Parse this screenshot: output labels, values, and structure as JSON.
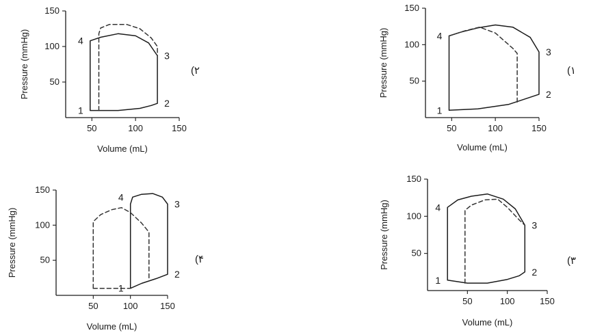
{
  "chart_data": [
    {
      "type": "line",
      "panel_label": "(۱",
      "xlabel": "Volume (mL)",
      "ylabel": "Pressure (mmHg)",
      "xticks": [
        50,
        100,
        150
      ],
      "yticks": [
        50,
        100,
        150
      ],
      "xlim": [
        20,
        150
      ],
      "ylim": [
        0,
        150
      ],
      "series": [
        {
          "style": "solid",
          "points": [
            [
              47,
              10
            ],
            [
              80,
              12
            ],
            [
              115,
              18
            ],
            [
              130,
              24
            ],
            [
              150,
              32
            ],
            [
              150,
              90
            ],
            [
              140,
              110
            ],
            [
              120,
              124
            ],
            [
              100,
              127
            ],
            [
              80,
              123
            ],
            [
              60,
              117
            ],
            [
              47,
              112
            ],
            [
              47,
              10
            ]
          ]
        },
        {
          "style": "dashed",
          "points": [
            [
              47,
              112
            ],
            [
              65,
              119
            ],
            [
              82,
              124
            ],
            [
              100,
              116
            ],
            [
              120,
              95
            ],
            [
              125,
              88
            ],
            [
              125,
              20
            ]
          ]
        }
      ],
      "point_labels": [
        {
          "text": "1",
          "x": 47,
          "y": 10,
          "anchor": "left"
        },
        {
          "text": "2",
          "x": 150,
          "y": 32,
          "anchor": "right"
        },
        {
          "text": "3",
          "x": 150,
          "y": 90,
          "anchor": "right"
        },
        {
          "text": "4",
          "x": 47,
          "y": 112,
          "anchor": "left"
        }
      ]
    },
    {
      "type": "line",
      "panel_label": "(۲",
      "xlabel": "Volume (mL)",
      "ylabel": "Pressure (mmHg)",
      "xticks": [
        50,
        100,
        150
      ],
      "yticks": [
        50,
        100,
        150
      ],
      "xlim": [
        20,
        150
      ],
      "ylim": [
        0,
        150
      ],
      "series": [
        {
          "style": "solid",
          "points": [
            [
              48,
              10
            ],
            [
              80,
              10
            ],
            [
              105,
              13
            ],
            [
              118,
              17
            ],
            [
              125,
              20
            ],
            [
              125,
              87
            ],
            [
              115,
              105
            ],
            [
              100,
              115
            ],
            [
              80,
              118
            ],
            [
              60,
              113
            ],
            [
              48,
              108
            ],
            [
              48,
              10
            ]
          ]
        },
        {
          "style": "dashed",
          "points": [
            [
              58,
              10
            ],
            [
              58,
              118
            ],
            [
              60,
              126
            ],
            [
              70,
              131
            ],
            [
              90,
              131
            ],
            [
              105,
              125
            ],
            [
              118,
              112
            ],
            [
              125,
              100
            ],
            [
              125,
              87
            ]
          ]
        }
      ],
      "point_labels": [
        {
          "text": "1",
          "x": 48,
          "y": 10,
          "anchor": "left"
        },
        {
          "text": "2",
          "x": 125,
          "y": 20,
          "anchor": "right"
        },
        {
          "text": "3",
          "x": 125,
          "y": 87,
          "anchor": "right"
        },
        {
          "text": "4",
          "x": 48,
          "y": 108,
          "anchor": "left"
        }
      ]
    },
    {
      "type": "line",
      "panel_label": "(۳",
      "xlabel": "Volume (mL)",
      "ylabel": "Pressure (mmHg)",
      "xticks": [
        50,
        100,
        150
      ],
      "yticks": [
        50,
        100,
        150
      ],
      "xlim": [
        0,
        150
      ],
      "ylim": [
        0,
        150
      ],
      "series": [
        {
          "style": "solid",
          "points": [
            [
              25,
              14
            ],
            [
              50,
              10
            ],
            [
              75,
              10
            ],
            [
              100,
              15
            ],
            [
              115,
              20
            ],
            [
              122,
              25
            ],
            [
              122,
              88
            ],
            [
              110,
              110
            ],
            [
              95,
              123
            ],
            [
              75,
              130
            ],
            [
              55,
              127
            ],
            [
              38,
              122
            ],
            [
              25,
              112
            ],
            [
              25,
              14
            ]
          ]
        },
        {
          "style": "dashed",
          "points": [
            [
              47,
              10
            ],
            [
              47,
              108
            ],
            [
              55,
              115
            ],
            [
              72,
              122
            ],
            [
              88,
              123
            ],
            [
              100,
              112
            ],
            [
              115,
              95
            ],
            [
              122,
              88
            ]
          ]
        }
      ],
      "point_labels": [
        {
          "text": "1",
          "x": 25,
          "y": 14,
          "anchor": "left"
        },
        {
          "text": "2",
          "x": 122,
          "y": 25,
          "anchor": "right"
        },
        {
          "text": "3",
          "x": 122,
          "y": 88,
          "anchor": "right"
        },
        {
          "text": "4",
          "x": 25,
          "y": 112,
          "anchor": "left"
        }
      ]
    },
    {
      "type": "line",
      "panel_label": "(۴",
      "xlabel": "Volume (mL)",
      "ylabel": "Pressure (mmHg)",
      "xticks": [
        50,
        100,
        150
      ],
      "yticks": [
        50,
        100,
        150
      ],
      "xlim": [
        0,
        150
      ],
      "ylim": [
        0,
        150
      ],
      "series": [
        {
          "style": "solid",
          "points": [
            [
              100,
              10
            ],
            [
              115,
              17
            ],
            [
              135,
              24
            ],
            [
              150,
              30
            ],
            [
              150,
              130
            ],
            [
              143,
              140
            ],
            [
              130,
              145
            ],
            [
              115,
              144
            ],
            [
              103,
              140
            ],
            [
              100,
              130
            ],
            [
              100,
              10
            ]
          ]
        },
        {
          "style": "dashed",
          "points": [
            [
              50,
              10
            ],
            [
              50,
              105
            ],
            [
              60,
              115
            ],
            [
              75,
              122
            ],
            [
              88,
              125
            ],
            [
              100,
              118
            ],
            [
              115,
              103
            ],
            [
              125,
              90
            ],
            [
              125,
              22
            ]
          ]
        },
        {
          "style": "dashed",
          "points": [
            [
              50,
              10
            ],
            [
              100,
              10
            ]
          ]
        }
      ],
      "point_labels": [
        {
          "text": "1",
          "x": 100,
          "y": 10,
          "anchor": "left"
        },
        {
          "text": "2",
          "x": 150,
          "y": 30,
          "anchor": "right"
        },
        {
          "text": "3",
          "x": 150,
          "y": 130,
          "anchor": "right"
        },
        {
          "text": "4",
          "x": 100,
          "y": 140,
          "anchor": "left"
        }
      ]
    }
  ]
}
